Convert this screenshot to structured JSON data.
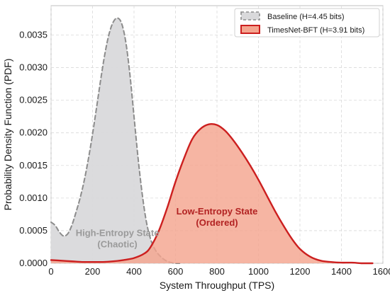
{
  "chart_data": {
    "type": "area",
    "xlabel": "System Throughput (TPS)",
    "ylabel": "Probability Density Function (PDF)",
    "xlim": [
      0,
      1600
    ],
    "ylim": [
      0,
      0.00395
    ],
    "xticks": [
      "0",
      "200",
      "400",
      "600",
      "800",
      "1000",
      "1200",
      "1400",
      "1600"
    ],
    "yticks": [
      "0.0000",
      "0.0005",
      "0.0010",
      "0.0015",
      "0.0020",
      "0.0025",
      "0.0030",
      "0.0035"
    ],
    "grid": true,
    "legend_position": "top-right",
    "series": [
      {
        "name": "Baseline (H=4.45 bits)",
        "style": "dashed",
        "line_color": "#8c8c8c",
        "fill_color": "#d9d9db",
        "x": [
          0,
          20,
          40,
          60,
          80,
          100,
          120,
          140,
          160,
          180,
          200,
          220,
          240,
          260,
          280,
          300,
          320,
          340,
          360,
          380,
          400,
          420,
          440,
          460,
          480,
          500,
          520,
          540,
          560,
          580,
          600,
          620
        ],
        "y": [
          0.00063,
          0.00058,
          0.00048,
          0.00042,
          0.00045,
          0.00058,
          0.00078,
          0.001,
          0.00127,
          0.0016,
          0.00198,
          0.0024,
          0.00283,
          0.00322,
          0.00352,
          0.0037,
          0.00376,
          0.00368,
          0.0034,
          0.0029,
          0.00225,
          0.0016,
          0.00105,
          0.00063,
          0.00037,
          0.00022,
          0.00013,
          7e-05,
          3e-05,
          1e-05,
          0.0,
          0.0
        ]
      },
      {
        "name": "TimesNet-BFT (H=3.91 bits)",
        "style": "solid",
        "line_color": "#cc1f1f",
        "fill_color": "#f4a58f",
        "x": [
          0,
          50,
          100,
          150,
          200,
          250,
          300,
          350,
          400,
          450,
          480,
          520,
          560,
          600,
          640,
          680,
          720,
          760,
          800,
          840,
          880,
          920,
          960,
          1000,
          1040,
          1080,
          1120,
          1160,
          1200,
          1250,
          1300,
          1350,
          1400,
          1450,
          1500,
          1550
        ],
        "y": [
          5e-05,
          4e-05,
          3e-05,
          2e-05,
          2e-05,
          2e-05,
          3e-05,
          5e-05,
          8e-05,
          0.00015,
          0.00025,
          0.0005,
          0.00085,
          0.00125,
          0.0016,
          0.0019,
          0.00206,
          0.00213,
          0.00212,
          0.00203,
          0.00188,
          0.0017,
          0.0015,
          0.00128,
          0.00104,
          0.0008,
          0.00058,
          0.00038,
          0.00022,
          0.0001,
          4e-05,
          2e-05,
          1e-05,
          1e-05,
          0.0,
          0.0
        ]
      }
    ],
    "annotations": [
      {
        "lines": [
          "High-Entropy State",
          "(Chaotic)"
        ],
        "x": 320,
        "y": 0.00042,
        "color": "#9a9a9a"
      },
      {
        "lines": [
          "Low-Entropy State",
          "(Ordered)"
        ],
        "x": 800,
        "y": 0.00075,
        "color": "#b22222"
      }
    ]
  }
}
